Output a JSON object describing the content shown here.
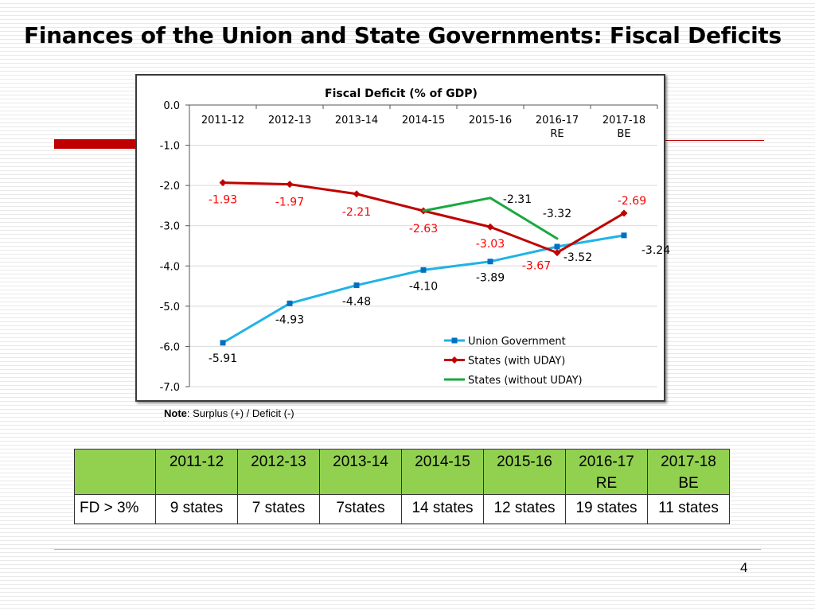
{
  "slide": {
    "title": "Finances of the Union and State Governments: Fiscal Deficits",
    "page_number": "4",
    "note_label": "Note",
    "note_text": ": Surplus (+) / Deficit (-)"
  },
  "colors": {
    "union": "#1fb3e6",
    "uday": "#c00000",
    "without_uday": "#17a940",
    "table_header": "#92d050",
    "accent_red": "#c00000"
  },
  "chart_data": {
    "type": "line",
    "title": "Fiscal Deficit (% of GDP)",
    "categories": [
      "2011-12",
      "2012-13",
      "2013-14",
      "2014-15",
      "2015-16",
      "2016-17\nRE",
      "2017-18\nBE"
    ],
    "y_ticks": [
      "0.0",
      "-1.0",
      "-2.0",
      "-3.0",
      "-4.0",
      "-5.0",
      "-6.0",
      "-7.0"
    ],
    "ylim": [
      -7,
      0
    ],
    "grid": true,
    "legend_position": "bottom-right",
    "series": [
      {
        "name": "Union Government",
        "color": "#1fb3e6",
        "marker": "square",
        "values": [
          -5.91,
          -4.93,
          -4.48,
          -4.1,
          -3.89,
          -3.52,
          -3.24
        ],
        "labels": [
          "-5.91",
          "-4.93",
          "-4.48",
          "-4.10",
          "-3.89",
          "-3.52",
          "-3.24"
        ],
        "label_color": "#000000"
      },
      {
        "name": "States (with UDAY)",
        "color": "#c00000",
        "marker": "diamond",
        "values": [
          -1.93,
          -1.97,
          -2.21,
          -2.63,
          -3.03,
          -3.67,
          -2.69
        ],
        "labels": [
          "-1.93",
          "-1.97",
          "-2.21",
          "-2.63",
          "-3.03",
          "-3.67",
          "-2.69"
        ],
        "label_color": "#ff0000"
      },
      {
        "name": "States (without UDAY)",
        "color": "#17a940",
        "marker": "none",
        "values": [
          null,
          null,
          null,
          -2.63,
          -2.31,
          -3.32,
          null
        ],
        "labels": [
          null,
          null,
          null,
          null,
          "-2.31",
          "-3.32",
          null
        ],
        "label_color": "#000000"
      }
    ]
  },
  "table": {
    "headers": [
      "",
      "2011-12",
      "2012-13",
      "2013-14",
      "2014-15",
      "2015-16",
      "2016-17\nRE",
      "2017-18\nBE"
    ],
    "rows": [
      [
        "FD > 3%",
        "9 states",
        "7 states",
        "7states",
        "14 states",
        "12 states",
        "19 states",
        "11 states"
      ]
    ]
  }
}
